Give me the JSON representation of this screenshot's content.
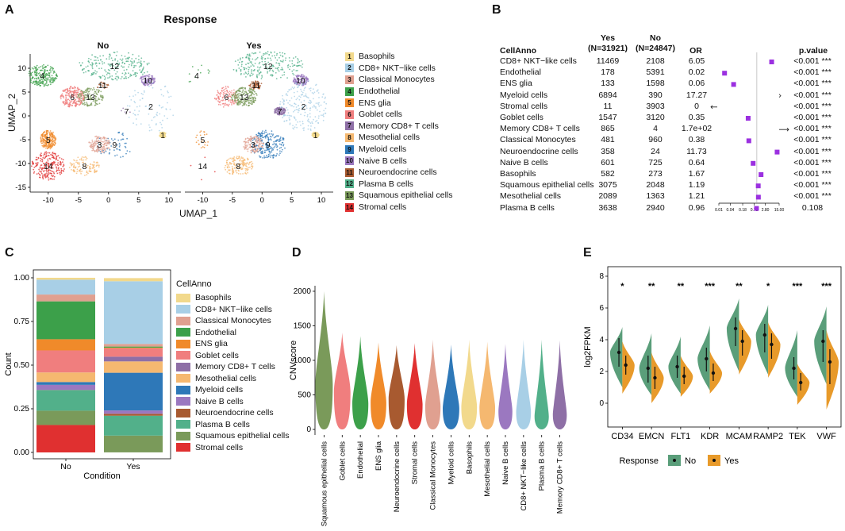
{
  "panel_labels": [
    "A",
    "B",
    "C",
    "D",
    "E"
  ],
  "colors": {
    "Basophils": "#F2D98C",
    "CD8+ NKT-like cells": "#A8CFE6",
    "Classical Monocytes": "#E0A090",
    "Endothelial": "#3CA04A",
    "ENS glia": "#F08A2A",
    "Goblet cells": "#F07E7E",
    "Memory CD8+ T cells": "#8E6FA6",
    "Mesothelial cells": "#F5B870",
    "Myeloid cells": "#2E78B8",
    "Naive B cells": "#9B78C0",
    "Neuroendocrine cells": "#A85A30",
    "Plasma B cells": "#52B08A",
    "Squamous epithelial cells": "#7A9A5A",
    "Stromal cells": "#E03030",
    "resp_no": "#5A9E7A",
    "resp_yes": "#E89A2A"
  },
  "panelA": {
    "title": "Response",
    "facets": [
      "No",
      "Yes"
    ],
    "xlabel": "UMAP_1",
    "ylabel": "UMAP_2",
    "xticks": [
      "-10",
      "-5",
      "0",
      "5",
      "10"
    ],
    "yticks": [
      "10",
      "5",
      "0",
      "-5",
      "-10",
      "-15"
    ],
    "legend": [
      {
        "num": "1",
        "name": "Basophils"
      },
      {
        "num": "2",
        "name": "CD8+ NKT−like cells"
      },
      {
        "num": "3",
        "name": "Classical Monocytes"
      },
      {
        "num": "4",
        "name": "Endothelial"
      },
      {
        "num": "5",
        "name": "ENS glia"
      },
      {
        "num": "6",
        "name": "Goblet cells"
      },
      {
        "num": "7",
        "name": "Memory CD8+ T cells"
      },
      {
        "num": "8",
        "name": "Mesothelial cells"
      },
      {
        "num": "9",
        "name": "Myeloid cells"
      },
      {
        "num": "10",
        "name": "Naive B cells"
      },
      {
        "num": "11",
        "name": "Neuroendocrine cells"
      },
      {
        "num": "12",
        "name": "Plasma B cells"
      },
      {
        "num": "13",
        "name": "Squamous epithelial cells"
      },
      {
        "num": "14",
        "name": "Stromal cells"
      }
    ]
  },
  "panelB": {
    "headers": {
      "cellanno": "CellAnno",
      "yes1": "Yes",
      "yes2": "(N=31921)",
      "no1": "No",
      "no2": "(N=24847)",
      "or": "OR",
      "p": "p.value"
    },
    "axis_ticks": [
      "0.01",
      "0.04",
      "0.18",
      "0.73",
      "2.80",
      "15.00"
    ],
    "rows": [
      {
        "cell": "CD8+ NKT−like cells",
        "yes": "11469",
        "no": "2108",
        "or": "6.05",
        "or_val": 6.05,
        "p": "<0.001 ***"
      },
      {
        "cell": "Endothelial",
        "yes": "178",
        "no": "5391",
        "or": "0.02",
        "or_val": 0.02,
        "p": "<0.001 ***"
      },
      {
        "cell": "ENS glia",
        "yes": "133",
        "no": "1598",
        "or": "0.06",
        "or_val": 0.06,
        "p": "<0.001 ***"
      },
      {
        "cell": "Myeloid cells",
        "yes": "6894",
        "no": "390",
        "or": "17.27",
        "or_val": 17.27,
        "p": "<0.001 ***"
      },
      {
        "cell": "Stromal cells",
        "yes": "11",
        "no": "3903",
        "or": "0",
        "or_val": 0,
        "p": "<0.001 ***"
      },
      {
        "cell": "Goblet cells",
        "yes": "1547",
        "no": "3120",
        "or": "0.35",
        "or_val": 0.35,
        "p": "<0.001 ***"
      },
      {
        "cell": "Memory CD8+ T cells",
        "yes": "865",
        "no": "4",
        "or": "1.7e+02",
        "or_val": 170,
        "p": "<0.001 ***"
      },
      {
        "cell": "Classical Monocytes",
        "yes": "481",
        "no": "960",
        "or": "0.38",
        "or_val": 0.38,
        "p": "<0.001 ***"
      },
      {
        "cell": "Neuroendocrine cells",
        "yes": "358",
        "no": "24",
        "or": "11.73",
        "or_val": 11.73,
        "p": "<0.001 ***"
      },
      {
        "cell": "Naive B cells",
        "yes": "601",
        "no": "725",
        "or": "0.64",
        "or_val": 0.64,
        "p": "<0.001 ***"
      },
      {
        "cell": "Basophils",
        "yes": "582",
        "no": "273",
        "or": "1.67",
        "or_val": 1.67,
        "p": "<0.001 ***"
      },
      {
        "cell": "Squamous epithelial cells",
        "yes": "3075",
        "no": "2048",
        "or": "1.19",
        "or_val": 1.19,
        "p": "<0.001 ***"
      },
      {
        "cell": "Mesothelial cells",
        "yes": "2089",
        "no": "1363",
        "or": "1.21",
        "or_val": 1.21,
        "p": "<0.001 ***"
      },
      {
        "cell": "Plasma B cells",
        "yes": "3638",
        "no": "2940",
        "or": "0.96",
        "or_val": 0.96,
        "p": "0.108"
      }
    ]
  },
  "chart_data": [
    {
      "id": "C",
      "type": "bar",
      "stacked": true,
      "categories": [
        "No",
        "Yes"
      ],
      "xlabel": "Condition",
      "ylabel": "Count",
      "yticks": [
        "0.00",
        "0.25",
        "0.50",
        "0.75",
        "1.00"
      ],
      "ylim": [
        0,
        1
      ],
      "legend_title": "CellAnno",
      "legend_labels": [
        "Basophils",
        "CD8+ NKT−like cells",
        "Classical Monocytes",
        "Endothelial",
        "ENS glia",
        "Goblet cells",
        "Memory CD8+ T cells",
        "Mesothelial cells",
        "Myeloid cells",
        "Naive B cells",
        "Neuroendocrine cells",
        "Plasma B cells",
        "Squamous epithelial cells",
        "Stromal cells"
      ],
      "series": [
        {
          "name": "Stromal cells",
          "values": [
            0.157,
            0.0003
          ]
        },
        {
          "name": "Squamous epithelial cells",
          "values": [
            0.082,
            0.096
          ]
        },
        {
          "name": "Plasma B cells",
          "values": [
            0.118,
            0.114
          ]
        },
        {
          "name": "Neuroendocrine cells",
          "values": [
            0.001,
            0.011
          ]
        },
        {
          "name": "Naive B cells",
          "values": [
            0.029,
            0.019
          ]
        },
        {
          "name": "Myeloid cells",
          "values": [
            0.016,
            0.216
          ]
        },
        {
          "name": "Mesothelial cells",
          "values": [
            0.055,
            0.065
          ]
        },
        {
          "name": "Memory CD8+ T cells",
          "values": [
            0.0002,
            0.027
          ]
        },
        {
          "name": "Goblet cells",
          "values": [
            0.126,
            0.048
          ]
        },
        {
          "name": "ENS glia",
          "values": [
            0.064,
            0.004
          ]
        },
        {
          "name": "Endothelial",
          "values": [
            0.217,
            0.006
          ]
        },
        {
          "name": "Classical Monocytes",
          "values": [
            0.039,
            0.015
          ]
        },
        {
          "name": "CD8+ NKT−like cells",
          "values": [
            0.085,
            0.359
          ]
        },
        {
          "name": "Basophils",
          "values": [
            0.011,
            0.018
          ]
        }
      ]
    },
    {
      "id": "D",
      "type": "violin",
      "ylabel": "CNVscore",
      "yticks": [
        "0",
        "500",
        "1000",
        "1500",
        "2000"
      ],
      "ylim": [
        -80,
        2080
      ],
      "categories": [
        "Squamous epithelial cells",
        "Goblet cells",
        "Endothelial",
        "ENS glia",
        "Neuroendocrine cells",
        "Stromal cells",
        "Classical Monocytes",
        "Myeloid cells",
        "Basophils",
        "Mesothelial cells",
        "Naive B cells",
        "CD8+ NKT−like cells",
        "Plasma B cells",
        "Memory CD8+ T cells"
      ],
      "max": [
        2000,
        1400,
        1350,
        1260,
        1220,
        1250,
        1300,
        1230,
        1300,
        1270,
        1240,
        1300,
        1300,
        1290
      ],
      "center": [
        870,
        720,
        500,
        520,
        580,
        480,
        440,
        400,
        430,
        420,
        350,
        330,
        250,
        280
      ],
      "width": [
        1.0,
        0.95,
        0.92,
        0.9,
        0.92,
        0.9,
        0.88,
        0.95,
        0.9,
        0.9,
        0.8,
        0.85,
        0.82,
        0.8
      ]
    },
    {
      "id": "E",
      "type": "violin",
      "ylabel": "log2FPKM",
      "yticks": [
        "0",
        "2",
        "4",
        "6",
        "8"
      ],
      "ylim": [
        -1.5,
        8.6
      ],
      "categories": [
        "CD34",
        "EMCN",
        "FLT1",
        "KDR",
        "MCAM",
        "RAMP2",
        "TEK",
        "VWF"
      ],
      "significance": [
        "*",
        "**",
        "**",
        "***",
        "**",
        "*",
        "***",
        "***"
      ],
      "legend_title": "Response",
      "legend_labels": [
        "No",
        "Yes"
      ],
      "series": [
        {
          "name": "No",
          "medians": [
            3.2,
            2.2,
            2.3,
            2.8,
            4.7,
            4.3,
            2.2,
            3.9
          ],
          "lo": [
            2.3,
            1.3,
            1.6,
            2.0,
            3.6,
            3.2,
            1.5,
            2.6
          ],
          "hi": [
            4.1,
            3.0,
            3.0,
            3.5,
            5.4,
            5.0,
            2.9,
            4.6
          ],
          "min": [
            1.0,
            0.5,
            0.6,
            0.8,
            2.0,
            1.8,
            0.4,
            1.2
          ],
          "max": [
            4.8,
            4.4,
            4.2,
            4.9,
            6.6,
            6.2,
            4.6,
            6.1
          ]
        },
        {
          "name": "Yes",
          "medians": [
            2.4,
            1.6,
            1.7,
            1.9,
            3.9,
            3.7,
            1.3,
            2.6
          ],
          "lo": [
            1.8,
            0.9,
            1.2,
            1.4,
            3.0,
            2.8,
            0.8,
            1.2
          ],
          "hi": [
            3.0,
            2.3,
            2.3,
            2.5,
            4.6,
            4.4,
            1.9,
            3.4
          ],
          "min": [
            0.6,
            0.0,
            0.4,
            0.6,
            1.8,
            1.6,
            -0.1,
            -0.4
          ],
          "max": [
            3.9,
            3.2,
            3.0,
            3.3,
            5.3,
            5.1,
            2.5,
            4.6
          ]
        }
      ]
    }
  ]
}
